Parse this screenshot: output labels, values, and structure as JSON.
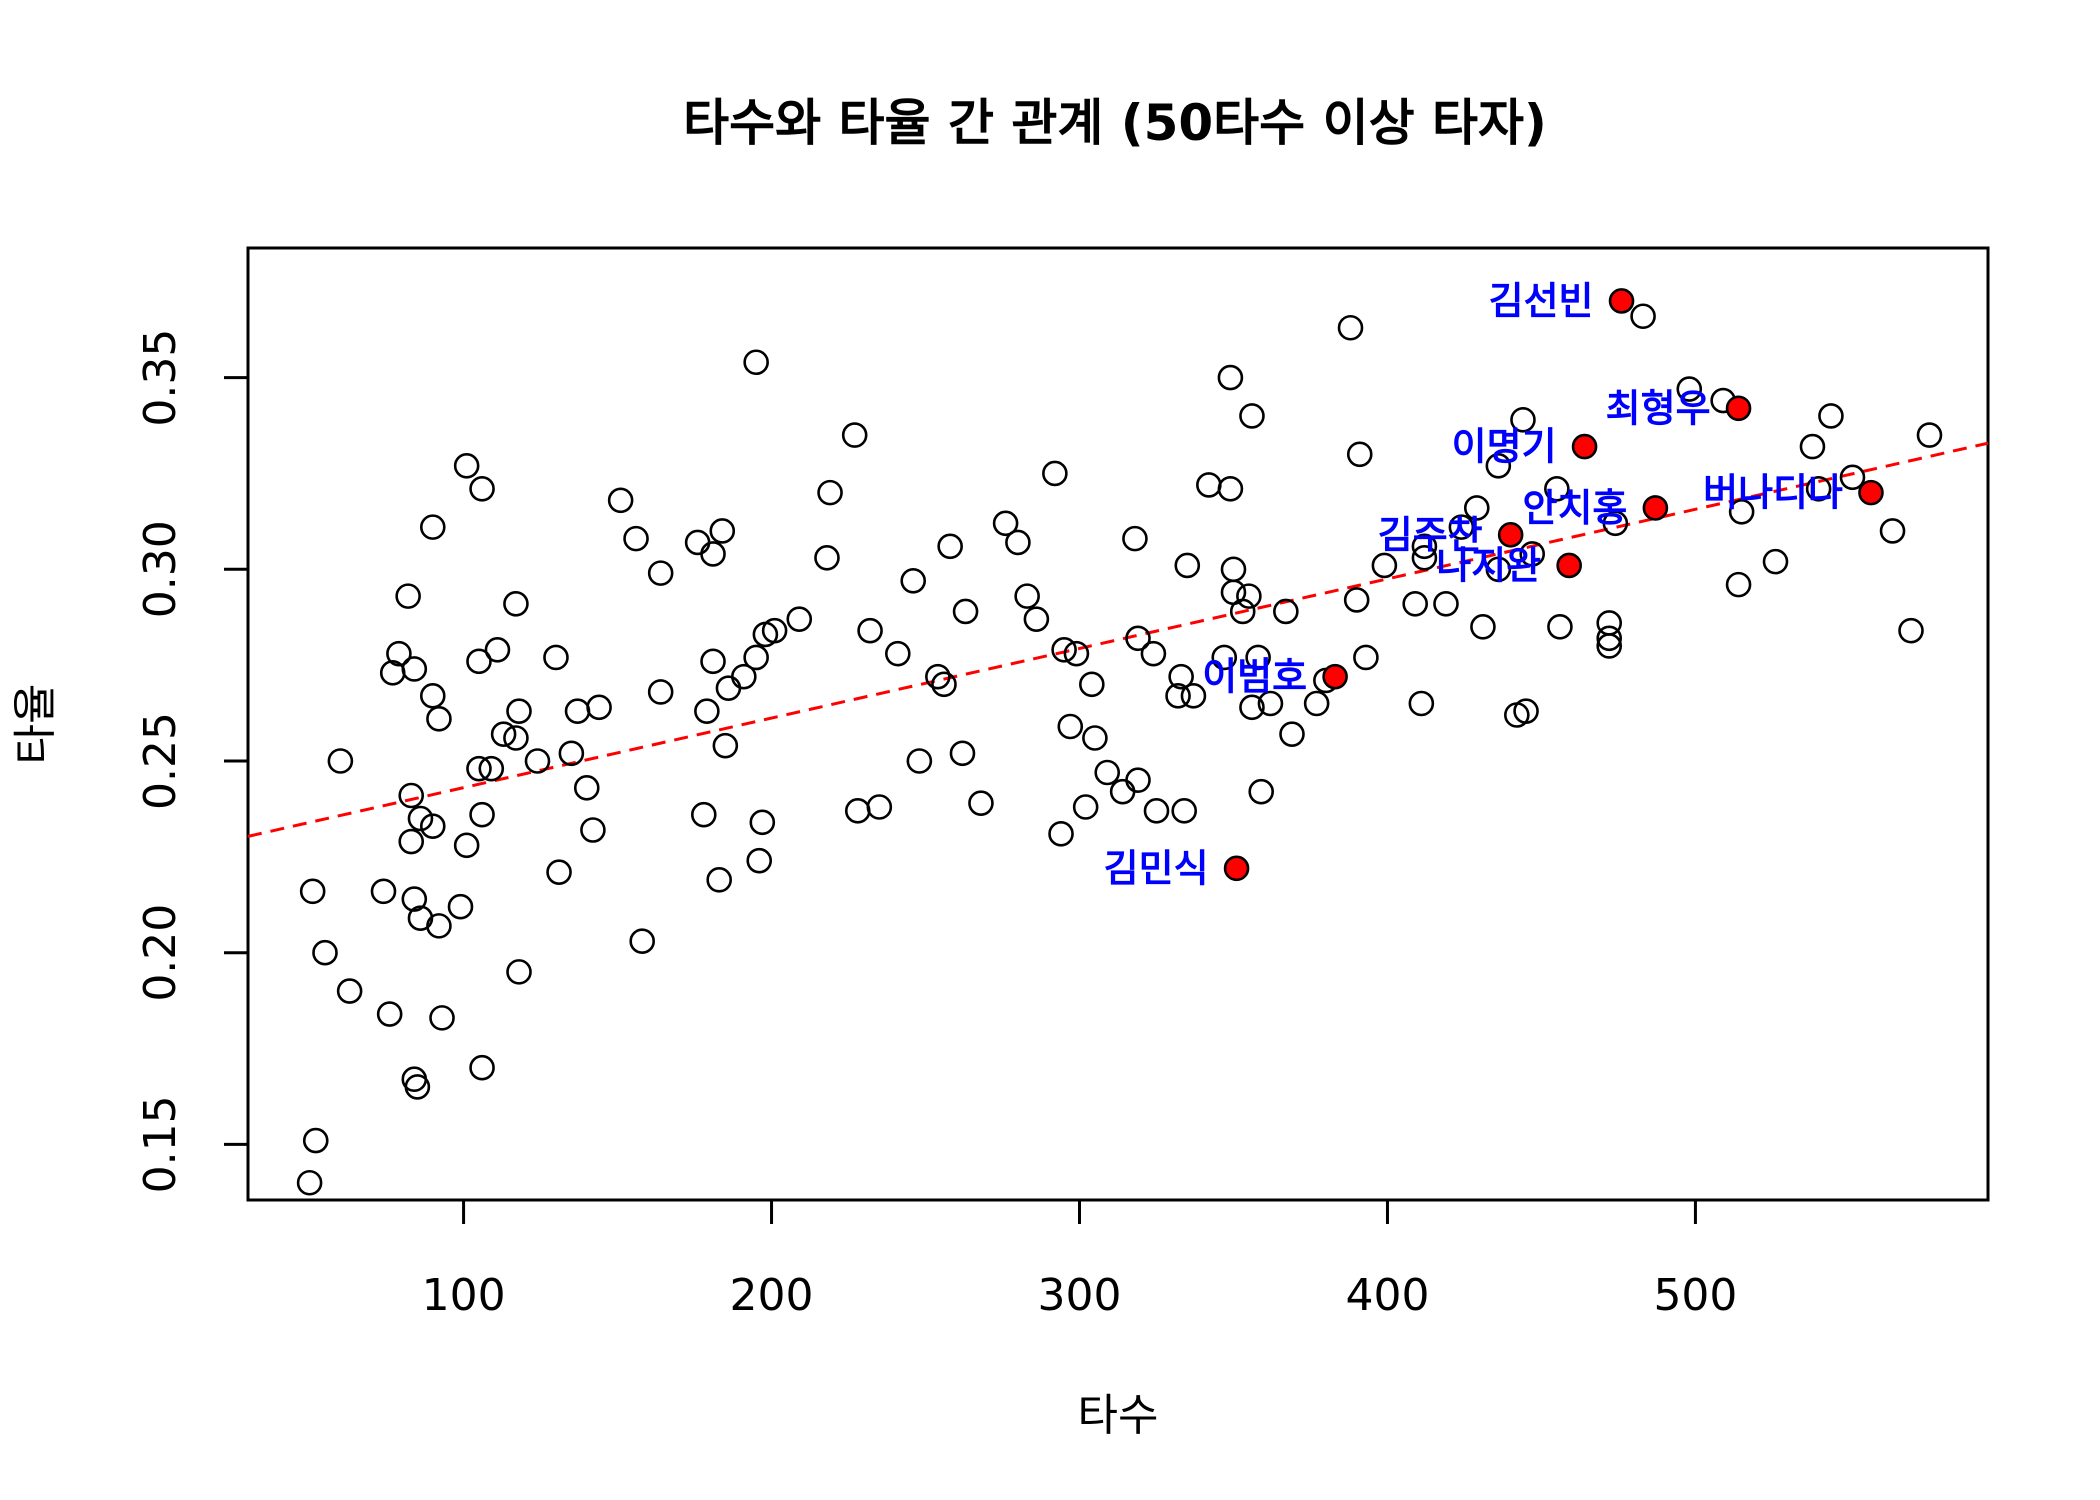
{
  "chart_data": {
    "type": "scatter",
    "title": "타수와 타율 간 관계 (50타수 이상 타자)",
    "xlabel": "타수",
    "ylabel": "타율",
    "xlim": [
      30,
      595
    ],
    "ylim": [
      0.1355,
      0.3838
    ],
    "x_ticks": [
      100,
      200,
      300,
      400,
      500
    ],
    "x_tick_labels": [
      "100",
      "200",
      "300",
      "400",
      "500"
    ],
    "y_ticks": [
      0.15,
      0.2,
      0.25,
      0.3,
      0.35
    ],
    "y_tick_labels": [
      "0.15",
      "0.20",
      "0.25",
      "0.30",
      "0.35"
    ],
    "grid": false,
    "colors": {
      "points": "#000000",
      "highlight": "#ff0000",
      "trend": "#ff0000",
      "labels": "#0000ff"
    },
    "trend_line": {
      "style": "dashed",
      "slope": 0.0001815,
      "intercept": 0.2249
    },
    "series": [
      {
        "points": [
          [
            50,
            0.14
          ],
          [
            52,
            0.151
          ],
          [
            51,
            0.216
          ],
          [
            55,
            0.2
          ],
          [
            60,
            0.25
          ],
          [
            63,
            0.19
          ],
          [
            74,
            0.216
          ],
          [
            76,
            0.184
          ],
          [
            77,
            0.273
          ],
          [
            79,
            0.278
          ],
          [
            82,
            0.293
          ],
          [
            83,
            0.241
          ],
          [
            83,
            0.229
          ],
          [
            84,
            0.274
          ],
          [
            84,
            0.214
          ],
          [
            84,
            0.167
          ],
          [
            85,
            0.165
          ],
          [
            86,
            0.235
          ],
          [
            86,
            0.209
          ],
          [
            90,
            0.311
          ],
          [
            90,
            0.267
          ],
          [
            90,
            0.233
          ],
          [
            92,
            0.261
          ],
          [
            92,
            0.207
          ],
          [
            93,
            0.183
          ],
          [
            99,
            0.212
          ],
          [
            101,
            0.327
          ],
          [
            101,
            0.228
          ],
          [
            105,
            0.276
          ],
          [
            105,
            0.248
          ],
          [
            106,
            0.236
          ],
          [
            106,
            0.321
          ],
          [
            106,
            0.17
          ],
          [
            109,
            0.248
          ],
          [
            111,
            0.279
          ],
          [
            113,
            0.257
          ],
          [
            117,
            0.256
          ],
          [
            117,
            0.291
          ],
          [
            118,
            0.263
          ],
          [
            118,
            0.195
          ],
          [
            124,
            0.25
          ],
          [
            130,
            0.277
          ],
          [
            131,
            0.221
          ],
          [
            135,
            0.252
          ],
          [
            137,
            0.263
          ],
          [
            140,
            0.243
          ],
          [
            142,
            0.232
          ],
          [
            144,
            0.264
          ],
          [
            151,
            0.318
          ],
          [
            156,
            0.308
          ],
          [
            158,
            0.203
          ],
          [
            164,
            0.299
          ],
          [
            164,
            0.268
          ],
          [
            176,
            0.307
          ],
          [
            178,
            0.236
          ],
          [
            179,
            0.263
          ],
          [
            181,
            0.304
          ],
          [
            181,
            0.276
          ],
          [
            183,
            0.219
          ],
          [
            184,
            0.31
          ],
          [
            185,
            0.254
          ],
          [
            186,
            0.269
          ],
          [
            191,
            0.272
          ],
          [
            195,
            0.354
          ],
          [
            195,
            0.277
          ],
          [
            196,
            0.224
          ],
          [
            197,
            0.234
          ],
          [
            198,
            0.283
          ],
          [
            201,
            0.284
          ],
          [
            209,
            0.287
          ],
          [
            218,
            0.303
          ],
          [
            219,
            0.32
          ],
          [
            227,
            0.335
          ],
          [
            228,
            0.237
          ],
          [
            232,
            0.284
          ],
          [
            235,
            0.238
          ],
          [
            241,
            0.278
          ],
          [
            246,
            0.297
          ],
          [
            248,
            0.25
          ],
          [
            254,
            0.272
          ],
          [
            256,
            0.27
          ],
          [
            258,
            0.306
          ],
          [
            262,
            0.252
          ],
          [
            263,
            0.289
          ],
          [
            268,
            0.239
          ],
          [
            276,
            0.312
          ],
          [
            280,
            0.307
          ],
          [
            283,
            0.293
          ],
          [
            286,
            0.287
          ],
          [
            292,
            0.325
          ],
          [
            294,
            0.231
          ],
          [
            295,
            0.279
          ],
          [
            297,
            0.259
          ],
          [
            299,
            0.278
          ],
          [
            302,
            0.238
          ],
          [
            304,
            0.27
          ],
          [
            305,
            0.256
          ],
          [
            309,
            0.247
          ],
          [
            314,
            0.242
          ],
          [
            318,
            0.308
          ],
          [
            319,
            0.282
          ],
          [
            319,
            0.245
          ],
          [
            324,
            0.278
          ],
          [
            325,
            0.237
          ],
          [
            332,
            0.267
          ],
          [
            333,
            0.272
          ],
          [
            334,
            0.237
          ],
          [
            335,
            0.301
          ],
          [
            337,
            0.267
          ],
          [
            342,
            0.322
          ],
          [
            347,
            0.277
          ],
          [
            349,
            0.35
          ],
          [
            349,
            0.321
          ],
          [
            350,
            0.3
          ],
          [
            350,
            0.294
          ],
          [
            353,
            0.289
          ],
          [
            355,
            0.293
          ],
          [
            356,
            0.264
          ],
          [
            356,
            0.34
          ],
          [
            358,
            0.277
          ],
          [
            359,
            0.242
          ],
          [
            362,
            0.265
          ],
          [
            367,
            0.289
          ],
          [
            369,
            0.257
          ],
          [
            377,
            0.265
          ],
          [
            380,
            0.271
          ],
          [
            388,
            0.363
          ],
          [
            390,
            0.292
          ],
          [
            391,
            0.33
          ],
          [
            393,
            0.277
          ],
          [
            399,
            0.301
          ],
          [
            409,
            0.291
          ],
          [
            411,
            0.265
          ],
          [
            412,
            0.306
          ],
          [
            412,
            0.303
          ],
          [
            419,
            0.291
          ],
          [
            424,
            0.311
          ],
          [
            429,
            0.316
          ],
          [
            431,
            0.285
          ],
          [
            436,
            0.327
          ],
          [
            436,
            0.3
          ],
          [
            442,
            0.262
          ],
          [
            444,
            0.339
          ],
          [
            445,
            0.263
          ],
          [
            447,
            0.304
          ],
          [
            455,
            0.321
          ],
          [
            456,
            0.285
          ],
          [
            472,
            0.286
          ],
          [
            472,
            0.282
          ],
          [
            472,
            0.28
          ],
          [
            474,
            0.312
          ],
          [
            483,
            0.366
          ],
          [
            498,
            0.347
          ],
          [
            509,
            0.344
          ],
          [
            514,
            0.296
          ],
          [
            515,
            0.315
          ],
          [
            526,
            0.302
          ],
          [
            538,
            0.332
          ],
          [
            540,
            0.321
          ],
          [
            544,
            0.34
          ],
          [
            551,
            0.324
          ],
          [
            564,
            0.31
          ],
          [
            570,
            0.284
          ],
          [
            576,
            0.335
          ]
        ]
      }
    ],
    "highlights": [
      {
        "name": "김선빈",
        "x": 476,
        "y": 0.37,
        "label_side": "left"
      },
      {
        "name": "최형우",
        "x": 514,
        "y": 0.342,
        "label_side": "left"
      },
      {
        "name": "이명기",
        "x": 464,
        "y": 0.332,
        "label_side": "left"
      },
      {
        "name": "안치홍",
        "x": 487,
        "y": 0.316,
        "label_side": "left"
      },
      {
        "name": "버나디나",
        "x": 557,
        "y": 0.32,
        "label_side": "left"
      },
      {
        "name": "김주찬",
        "x": 440,
        "y": 0.309,
        "label_side": "left"
      },
      {
        "name": "나지완",
        "x": 459,
        "y": 0.301,
        "label_side": "left"
      },
      {
        "name": "이범호",
        "x": 383,
        "y": 0.272,
        "label_side": "left"
      },
      {
        "name": "김민식",
        "x": 351,
        "y": 0.222,
        "label_side": "left"
      }
    ]
  }
}
